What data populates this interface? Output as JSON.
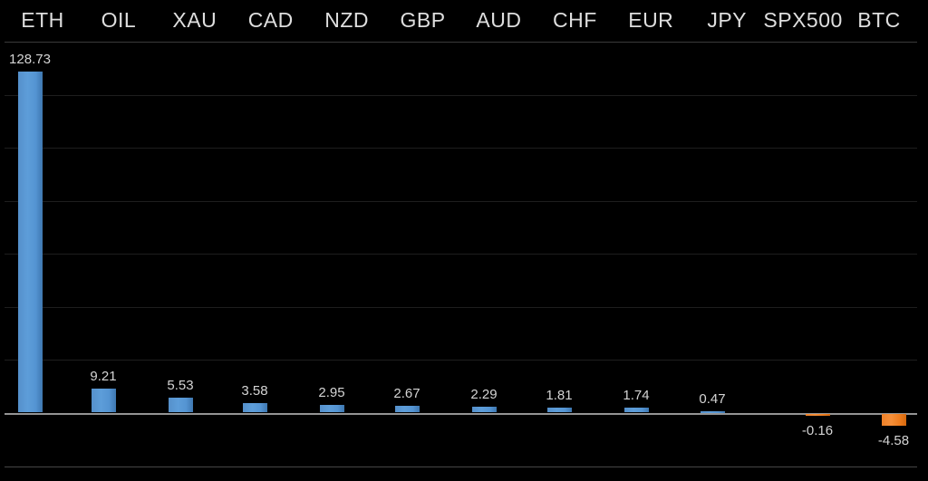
{
  "chart_data": {
    "type": "bar",
    "title": "",
    "xlabel": "",
    "ylabel": "",
    "categories": [
      "ETH",
      "OIL",
      "XAU",
      "CAD",
      "NZD",
      "GBP",
      "AUD",
      "CHF",
      "EUR",
      "JPY",
      "SPX500",
      "BTC"
    ],
    "values": [
      128.73,
      9.21,
      5.53,
      3.58,
      2.95,
      2.67,
      2.29,
      1.81,
      1.74,
      0.47,
      -0.16,
      -4.58
    ],
    "value_labels": [
      "128.73",
      "9.21",
      "5.53",
      "3.58",
      "2.95",
      "2.67",
      "2.29",
      "1.81",
      "1.74",
      "0.47",
      "-0.16",
      "-4.58"
    ],
    "ylim": [
      -20,
      141
    ],
    "grid_interval": 20,
    "grid": true,
    "legend": false,
    "colors": {
      "background": "#000000",
      "positive_bar": "#5b9bd5",
      "negative_bar": "#ed7d22",
      "category_label_text": "#dedede",
      "value_label_text": "#d4d4d4",
      "zero_axis_line": "#949494",
      "gridline": "#1e1e1e",
      "header_separator": "#3a3a3a",
      "bottom_border": "#454545"
    }
  }
}
